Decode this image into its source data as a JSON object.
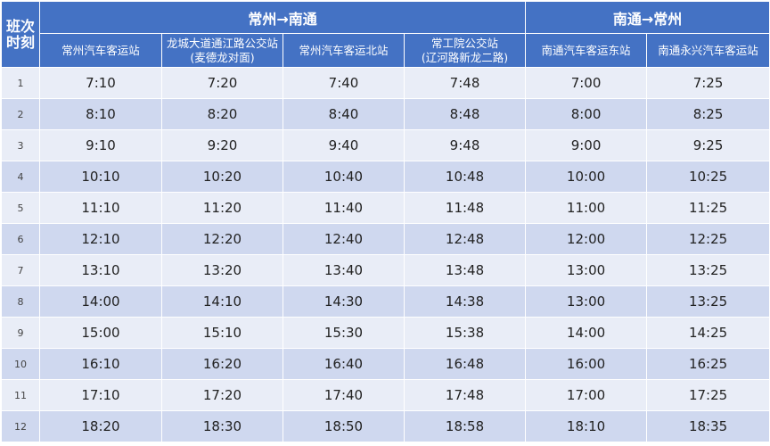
{
  "corner_label": [
    "班次",
    "时刻"
  ],
  "directions": [
    "常州→南通",
    "南通→常州"
  ],
  "stations": [
    [
      "常州汽车客运站"
    ],
    [
      "龙城大道通江路公交站",
      "(麦德龙对面)"
    ],
    [
      "常州汽车客运北站"
    ],
    [
      "常工院公交站",
      "(辽河路新龙二路)"
    ],
    [
      "南通汽车客运东站"
    ],
    [
      "南通永兴汽车客运站"
    ]
  ],
  "rows": [
    [
      "1",
      "7:10",
      "7:20",
      "7:40",
      "7:48",
      "7:00",
      "7:25"
    ],
    [
      "2",
      "8:10",
      "8:20",
      "8:40",
      "8:48",
      "8:00",
      "8:25"
    ],
    [
      "3",
      "9:10",
      "9:20",
      "9:40",
      "9:48",
      "9:00",
      "9:25"
    ],
    [
      "4",
      "10:10",
      "10:20",
      "10:40",
      "10:48",
      "10:00",
      "10:25"
    ],
    [
      "5",
      "11:10",
      "11:20",
      "11:40",
      "11:48",
      "11:00",
      "11:25"
    ],
    [
      "6",
      "12:10",
      "12:20",
      "12:40",
      "12:48",
      "12:00",
      "12:25"
    ],
    [
      "7",
      "13:10",
      "13:20",
      "13:40",
      "13:48",
      "13:00",
      "13:25"
    ],
    [
      "8",
      "14:00",
      "14:10",
      "14:30",
      "14:38",
      "13:00",
      "13:25"
    ],
    [
      "9",
      "15:00",
      "15:10",
      "15:30",
      "15:38",
      "14:00",
      "14:25"
    ],
    [
      "10",
      "16:10",
      "16:20",
      "16:40",
      "16:48",
      "16:00",
      "16:25"
    ],
    [
      "11",
      "17:10",
      "17:20",
      "17:40",
      "17:48",
      "17:00",
      "17:25"
    ],
    [
      "12",
      "18:20",
      "18:30",
      "18:50",
      "18:58",
      "18:10",
      "18:35"
    ]
  ],
  "colors": {
    "header": "#4472c4",
    "row_light": "#e9edf7",
    "row_dark": "#cfd8ef"
  }
}
